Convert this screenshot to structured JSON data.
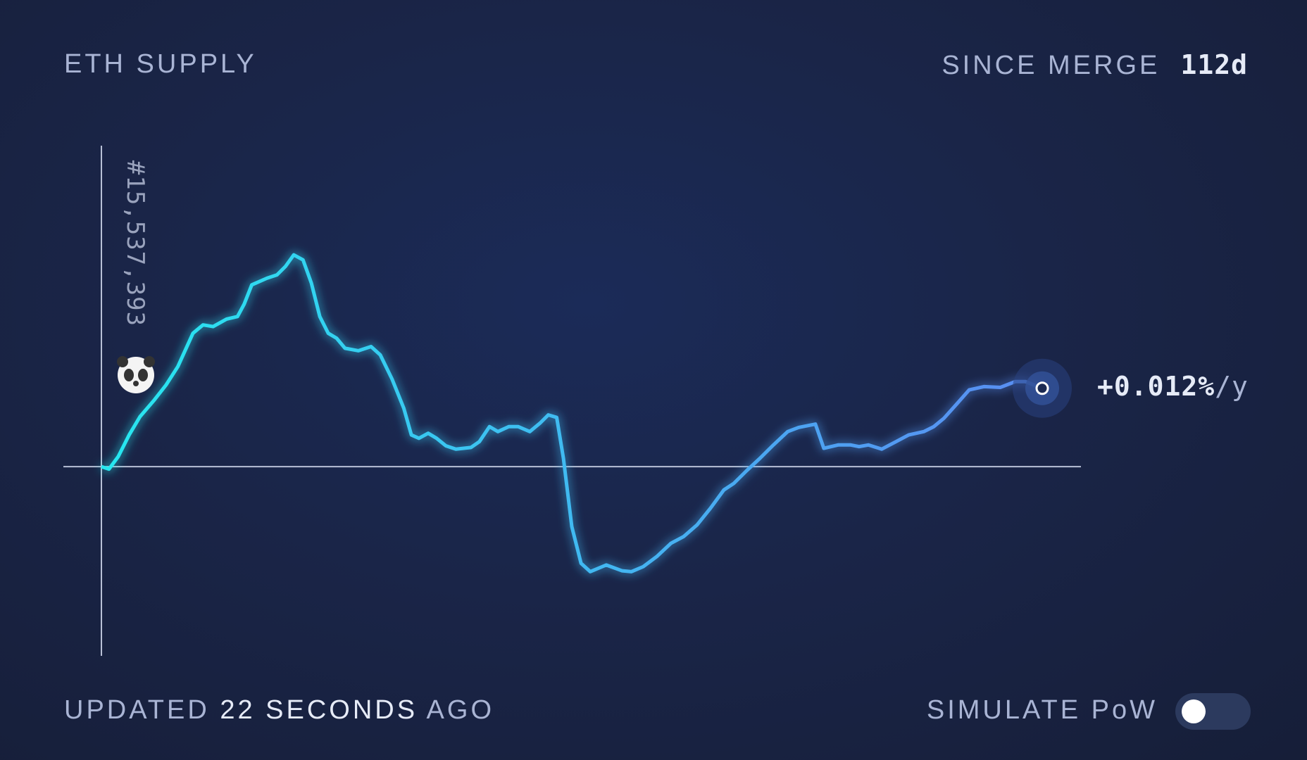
{
  "header": {
    "title": "ETH SUPPLY",
    "since_label": "SINCE MERGE",
    "since_value": "112d"
  },
  "chart_data": {
    "type": "line",
    "x": [
      0,
      0.9,
      2.0,
      3.3,
      4.6,
      6.3,
      7.7,
      9.1,
      10.9,
      12.1,
      13.3,
      14.9,
      16.2,
      17.0,
      17.9,
      19.7,
      20.9,
      21.9,
      22.9,
      24.0,
      25.0,
      26.0,
      27.0,
      28.0,
      29.0,
      30.6,
      32.1,
      33.2,
      34.6,
      36.0,
      36.9,
      37.8,
      38.9,
      39.9,
      41.0,
      42.2,
      44.0,
      45.0,
      46.2,
      47.2,
      48.5,
      49.6,
      51.0,
      52.2,
      53.2,
      54.2,
      55.0,
      56.0,
      57.1,
      58.2,
      60.1,
      62.0,
      63.1,
      64.5,
      66.1,
      67.8,
      69.3,
      70.9,
      72.5,
      74.1,
      75.3,
      76.8,
      78.4,
      80.0,
      81.7,
      83.0,
      85.0,
      86.0,
      87.7,
      89.2,
      90.2,
      91.3,
      92.9,
      94.6,
      96.1,
      97.9,
      99.1,
      100.3,
      101.9,
      103.3,
      105.1,
      107.0,
      108.8,
      110.0,
      112.0
    ],
    "series": [
      {
        "colors": [
          "#27e8f0",
          "#5a8cf2"
        ],
        "values": [
          0,
          -0.3,
          1.2,
          3.8,
          6,
          8,
          9.8,
          12,
          16,
          17,
          16.8,
          17.7,
          18,
          19.5,
          21.8,
          22.6,
          23,
          24,
          25.4,
          24.8,
          22,
          18,
          16,
          15.4,
          14.2,
          13.9,
          14.4,
          13.4,
          10.5,
          7,
          3.8,
          3.4,
          4,
          3.4,
          2.5,
          2.1,
          2.3,
          3,
          4.8,
          4.2,
          4.8,
          4.8,
          4.2,
          5.2,
          6.2,
          5.9,
          1,
          -7.2,
          -11.6,
          -12.6,
          -11.8,
          -12.5,
          -12.6,
          -12,
          -10.8,
          -9.2,
          -8.4,
          -7,
          -5,
          -2.8,
          -2,
          -0.5,
          1,
          2.6,
          4.2,
          4.7,
          5.1,
          2.2,
          2.6,
          2.6,
          2.4,
          2.6,
          2.1,
          3,
          3.8,
          4.2,
          4.8,
          5.8,
          7.6,
          9.2,
          9.6,
          9.5,
          10.2,
          10.2,
          9.4
        ]
      }
    ],
    "xlim": [
      0,
      112
    ],
    "ylim": [
      -22.7,
      38.5
    ],
    "annotations": {
      "merge_block": "#15,537,393",
      "rate": "+0.012%",
      "rate_unit": "/y"
    }
  },
  "footer": {
    "updated_prefix": "UPDATED",
    "updated_time": "22 SECONDS",
    "updated_suffix": "AGO",
    "toggle_label": "SIMULATE PoW"
  }
}
